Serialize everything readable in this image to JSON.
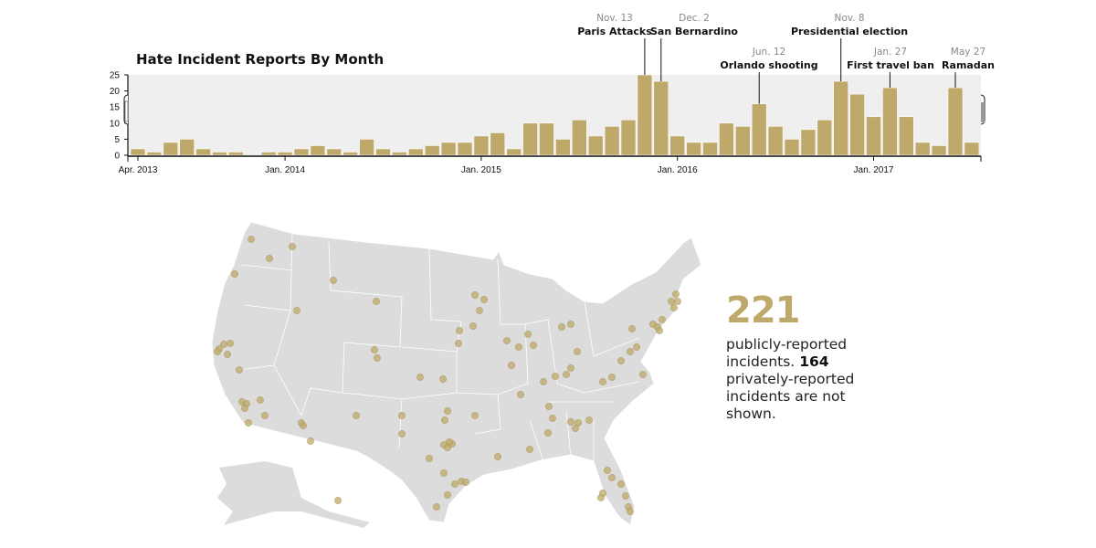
{
  "chart_data": {
    "type": "bar",
    "title": "Hate Incident Reports By Month",
    "xlabel": "",
    "ylabel": "",
    "ylim": [
      0,
      25
    ],
    "yticks": [
      "0",
      "5",
      "10",
      "15",
      "20",
      "25"
    ],
    "xticks": [
      "Apr. 2013",
      "Jan. 2014",
      "Jan. 2015",
      "Jan. 2016",
      "Jan. 2017"
    ],
    "categories": [
      "2013-04",
      "2013-05",
      "2013-06",
      "2013-07",
      "2013-08",
      "2013-09",
      "2013-10",
      "2013-11",
      "2013-12",
      "2014-01",
      "2014-02",
      "2014-03",
      "2014-04",
      "2014-05",
      "2014-06",
      "2014-07",
      "2014-08",
      "2014-09",
      "2014-10",
      "2014-11",
      "2014-12",
      "2015-01",
      "2015-02",
      "2015-03",
      "2015-04",
      "2015-05",
      "2015-06",
      "2015-07",
      "2015-08",
      "2015-09",
      "2015-10",
      "2015-11",
      "2015-12",
      "2016-01",
      "2016-02",
      "2016-03",
      "2016-04",
      "2016-05",
      "2016-06",
      "2016-07",
      "2016-08",
      "2016-09",
      "2016-10",
      "2016-11",
      "2016-12",
      "2017-01",
      "2017-02",
      "2017-03",
      "2017-04",
      "2017-05",
      "2017-06",
      "2017-07"
    ],
    "values": [
      2,
      1,
      4,
      5,
      2,
      1,
      1,
      0,
      1,
      1,
      2,
      3,
      2,
      1,
      5,
      2,
      1,
      2,
      3,
      4,
      4,
      6,
      7,
      2,
      10,
      10,
      5,
      11,
      6,
      9,
      11,
      25,
      23,
      6,
      4,
      4,
      10,
      9,
      16,
      9,
      5,
      8,
      11,
      23,
      19,
      12,
      21,
      12,
      4,
      3,
      21,
      4
    ],
    "grid": false,
    "bar_color": "#bfa96a",
    "background_color": "#efefef",
    "annotations": [
      {
        "date": "Nov. 13",
        "label": "Paris Attacks",
        "month": "2015-11"
      },
      {
        "date": "Dec. 2",
        "label": "San Bernardino",
        "month": "2015-12"
      },
      {
        "date": "Jun. 12",
        "label": "Orlando shooting",
        "month": "2016-06"
      },
      {
        "date": "Nov. 8",
        "label": "Presidential election",
        "month": "2016-11"
      },
      {
        "date": "Jan. 27",
        "label": "First travel ban",
        "month": "2017-02"
      },
      {
        "date": "May 27",
        "label": "Ramadan",
        "month": "2017-06"
      }
    ]
  },
  "map": {
    "land_color": "#dcdcdc",
    "dot_color": "#bfa96a"
  },
  "summary": {
    "count": "221",
    "text_1": "publicly-reported incidents.",
    "private_count": "164",
    "text_2": "privately-reported incidents are not shown."
  }
}
